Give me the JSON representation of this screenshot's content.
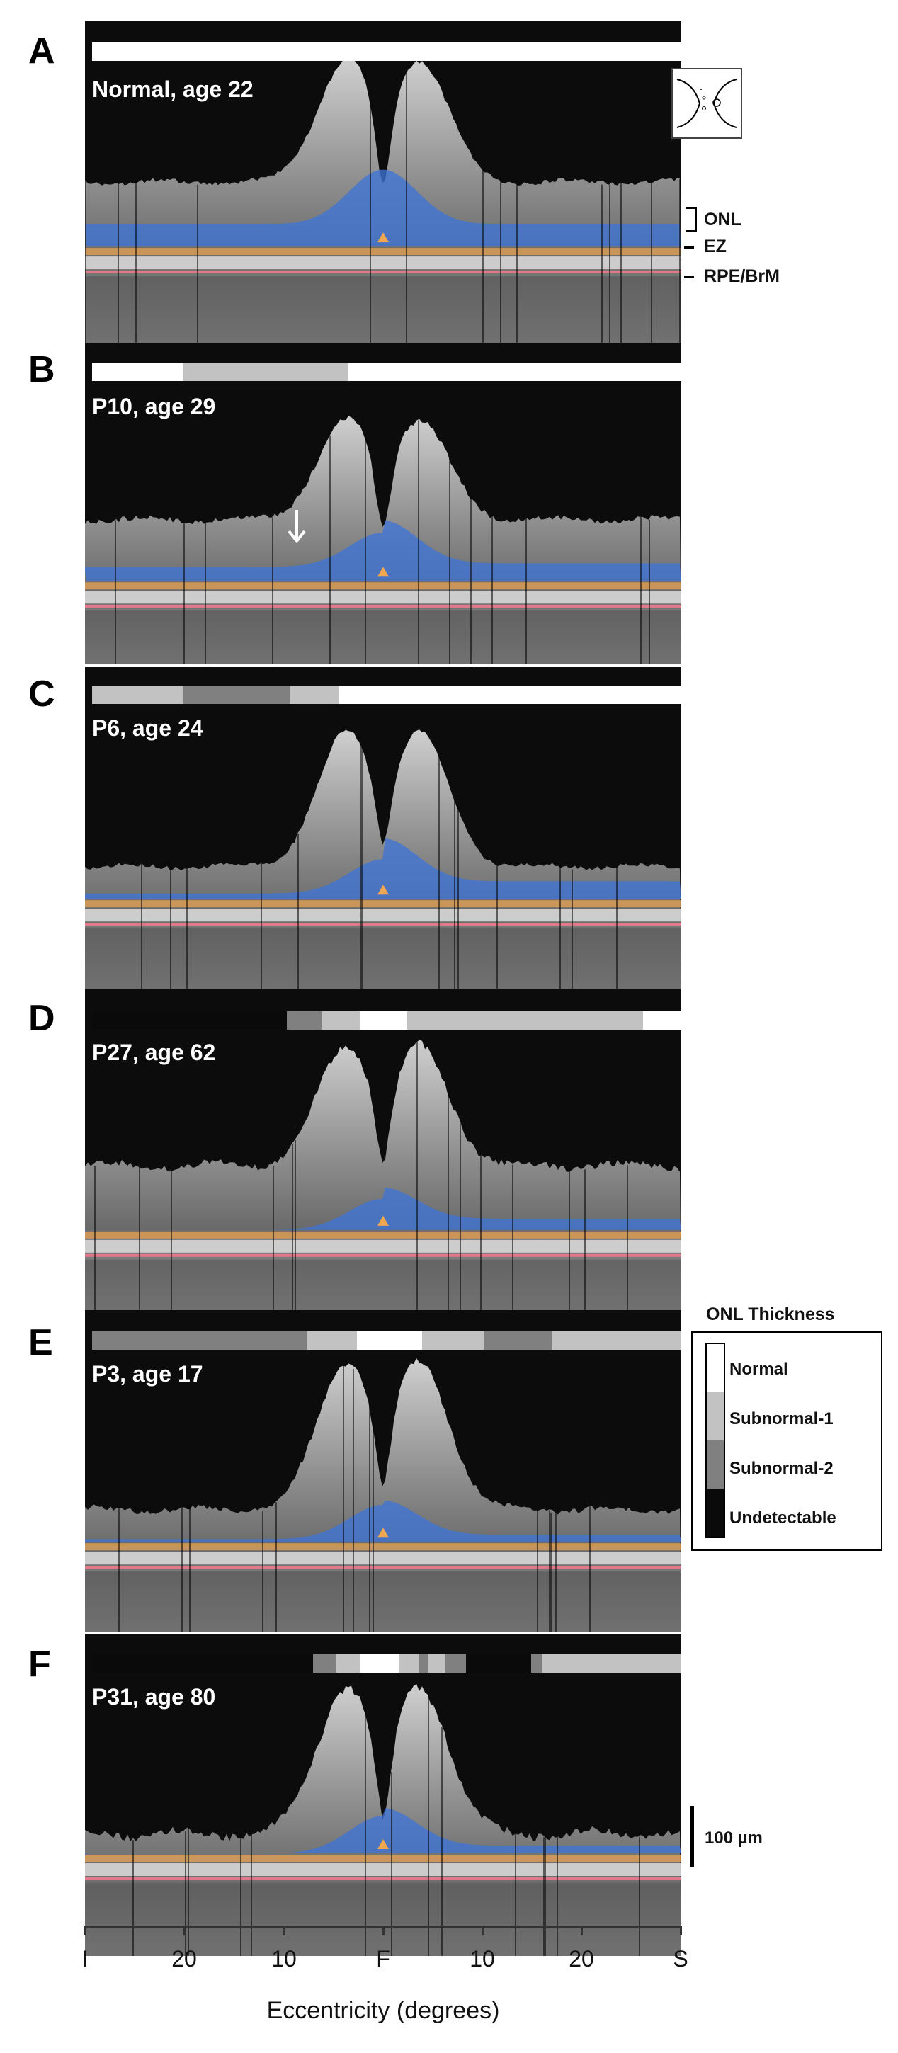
{
  "panels": [
    {
      "letter": "A",
      "label": "Normal, age 22",
      "bar": [
        {
          "level": "normal",
          "from": 0,
          "to": 1
        }
      ]
    },
    {
      "letter": "B",
      "label": "P10, age 29",
      "bar": [
        {
          "level": "normal",
          "from": 0,
          "to": 0.155
        },
        {
          "level": "subnormal1",
          "from": 0.155,
          "to": 0.435
        },
        {
          "level": "normal",
          "from": 0.435,
          "to": 1
        }
      ]
    },
    {
      "letter": "C",
      "label": "P6, age 24",
      "bar": [
        {
          "level": "subnormal1",
          "from": 0,
          "to": 0.155
        },
        {
          "level": "subnormal2",
          "from": 0.155,
          "to": 0.335
        },
        {
          "level": "subnormal1",
          "from": 0.335,
          "to": 0.42
        },
        {
          "level": "normal",
          "from": 0.42,
          "to": 1
        }
      ]
    },
    {
      "letter": "D",
      "label": "P27, age 62",
      "bar": [
        {
          "level": "undetectable",
          "from": 0,
          "to": 0.33
        },
        {
          "level": "subnormal2",
          "from": 0.33,
          "to": 0.39
        },
        {
          "level": "subnormal1",
          "from": 0.39,
          "to": 0.455
        },
        {
          "level": "normal",
          "from": 0.455,
          "to": 0.535
        },
        {
          "level": "subnormal1",
          "from": 0.535,
          "to": 0.935
        },
        {
          "level": "normal",
          "from": 0.935,
          "to": 1
        }
      ]
    },
    {
      "letter": "E",
      "label": "P3, age 17",
      "bar": [
        {
          "level": "subnormal2",
          "from": 0,
          "to": 0.365
        },
        {
          "level": "subnormal1",
          "from": 0.365,
          "to": 0.45
        },
        {
          "level": "normal",
          "from": 0.45,
          "to": 0.56
        },
        {
          "level": "subnormal1",
          "from": 0.56,
          "to": 0.665
        },
        {
          "level": "subnormal2",
          "from": 0.665,
          "to": 0.78
        },
        {
          "level": "subnormal1",
          "from": 0.78,
          "to": 1
        }
      ]
    },
    {
      "letter": "F",
      "label": "P31, age 80",
      "bar": [
        {
          "level": "undetectable",
          "from": 0,
          "to": 0.375
        },
        {
          "level": "subnormal2",
          "from": 0.375,
          "to": 0.415
        },
        {
          "level": "subnormal1",
          "from": 0.415,
          "to": 0.455
        },
        {
          "level": "normal",
          "from": 0.455,
          "to": 0.52
        },
        {
          "level": "subnormal1",
          "from": 0.52,
          "to": 0.555
        },
        {
          "level": "subnormal2",
          "from": 0.555,
          "to": 0.57
        },
        {
          "level": "subnormal1",
          "from": 0.57,
          "to": 0.6
        },
        {
          "level": "subnormal2",
          "from": 0.6,
          "to": 0.635
        },
        {
          "level": "undetectable",
          "from": 0.635,
          "to": 0.745
        },
        {
          "level": "subnormal2",
          "from": 0.745,
          "to": 0.765
        },
        {
          "level": "subnormal1",
          "from": 0.765,
          "to": 1
        }
      ]
    }
  ],
  "layer_labels": {
    "onl": "ONL",
    "ez": "EZ",
    "rpe": "RPE/BrM"
  },
  "legend": {
    "title": "ONL Thickness",
    "items": [
      {
        "key": "normal",
        "label": "Normal",
        "color": "#ffffff"
      },
      {
        "key": "subnormal1",
        "label": "Subnormal-1",
        "color": "#c2c2c2"
      },
      {
        "key": "subnormal2",
        "label": "Subnormal-2",
        "color": "#808080"
      },
      {
        "key": "undetectable",
        "label": "Undetectable",
        "color": "#0a0a0a"
      }
    ]
  },
  "colors": {
    "onl": "#3f74d6",
    "ez": "#f2a650",
    "rpe": "#e07a8a"
  },
  "scale_bar_label": "100 µm",
  "x_axis": {
    "ticks": [
      "I",
      "20",
      "10",
      "F",
      "10",
      "20",
      "S"
    ],
    "title": "Eccentricity (degrees)"
  }
}
